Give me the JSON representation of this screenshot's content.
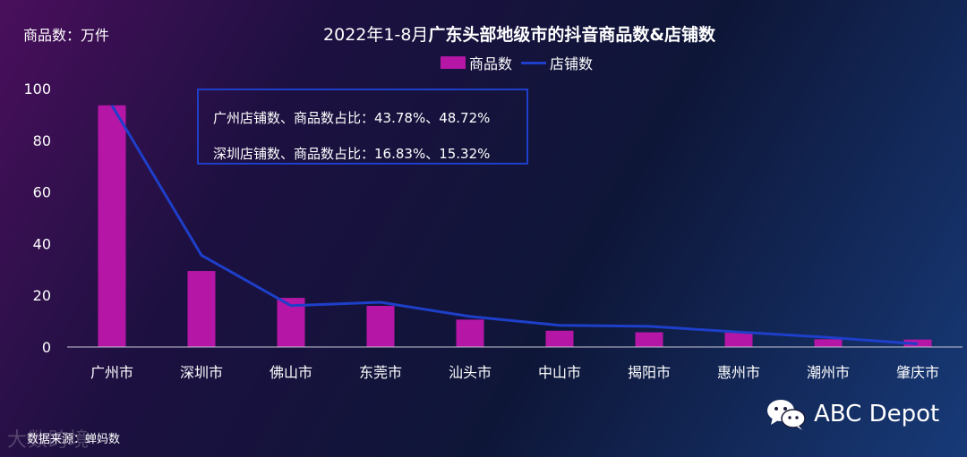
{
  "unit_label": "商品数：万件",
  "title": {
    "prefix": "2022年1-8月",
    "main": "广东头部地级市的抖音商品数&店铺数"
  },
  "legend": {
    "bar": "商品数",
    "line": "店铺数"
  },
  "annotations": [
    "广州店铺数、商品数占比：43.78%、48.72%",
    "深圳店铺数、商品数占比：16.83%、15.32%"
  ],
  "source": "数据来源：蝉妈数",
  "watermark": "大数跨境",
  "brand": {
    "name": "ABC Depot",
    "icon": "wechat-icon"
  },
  "colors": {
    "bar": "#b516a6",
    "line": "#1e3fc9"
  },
  "chart_data": {
    "type": "bar",
    "categories": [
      "广州市",
      "深圳市",
      "佛山市",
      "东莞市",
      "汕头市",
      "中山市",
      "揭阳市",
      "惠州市",
      "潮州市",
      "肇庆市"
    ],
    "series": [
      {
        "name": "商品数",
        "type": "bar",
        "values": [
          93.5,
          29.4,
          19.0,
          15.9,
          10.6,
          6.3,
          5.7,
          5.5,
          3.0,
          2.9
        ]
      },
      {
        "name": "店铺数",
        "type": "line",
        "values": [
          93.5,
          35.5,
          16.0,
          17.3,
          11.8,
          8.4,
          8.0,
          5.8,
          3.7,
          1.2
        ]
      }
    ],
    "y_ticks": [
      0,
      20,
      40,
      60,
      80,
      100
    ],
    "ylim": [
      0,
      100
    ],
    "grid": false,
    "legend_position": "top-center"
  }
}
